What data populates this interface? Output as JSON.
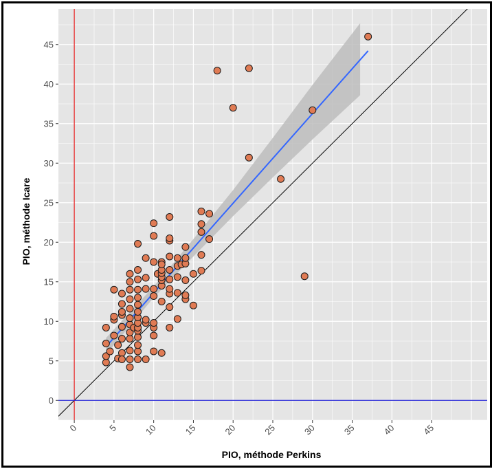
{
  "chart_data": {
    "type": "scatter",
    "title": "",
    "xlabel": "PIO, méthode Perkins",
    "ylabel": "PIO, méthode Icare",
    "xlim": [
      -2,
      52
    ],
    "ylim": [
      -2.5,
      49.5
    ],
    "x_ticks": [
      0,
      5,
      10,
      15,
      20,
      25,
      30,
      35,
      40,
      45
    ],
    "y_ticks": [
      0,
      5,
      10,
      15,
      20,
      25,
      30,
      35,
      40,
      45
    ],
    "grid": true,
    "legend": "none",
    "colors": {
      "panel_background": "#e5e5e5",
      "grid": "#ffffff",
      "points_fill": "#e07b54",
      "points_stroke": "#1a1a1a",
      "regression_line": "#3366ff",
      "confidence_band": "#bdbdbd",
      "identity_line": "#000000",
      "vertical_reference": "#e41a1c",
      "horizontal_reference": "#1f1fd6"
    },
    "reference_lines": {
      "identity": "y = x",
      "vertical_x": 0,
      "horizontal_y": 0
    },
    "regression": {
      "x_start": 4,
      "y_start": 6.8,
      "x_end": 37,
      "y_end": 44.2,
      "band": [
        {
          "x": 4,
          "lo": 5.8,
          "hi": 7.9
        },
        {
          "x": 10,
          "lo": 13.0,
          "hi": 14.4
        },
        {
          "x": 15,
          "lo": 18.2,
          "hi": 20.4
        },
        {
          "x": 20,
          "lo": 23.3,
          "hi": 26.6
        },
        {
          "x": 25,
          "lo": 28.2,
          "hi": 33.2
        },
        {
          "x": 30,
          "lo": 33.0,
          "hi": 39.9
        },
        {
          "x": 36,
          "lo": 38.6,
          "hi": 47.7
        }
      ]
    },
    "points": [
      {
        "x": 4,
        "y": 4.8
      },
      {
        "x": 4,
        "y": 5.6
      },
      {
        "x": 4,
        "y": 7.2
      },
      {
        "x": 4,
        "y": 9.2
      },
      {
        "x": 4.5,
        "y": 6.2
      },
      {
        "x": 5,
        "y": 10.2
      },
      {
        "x": 5,
        "y": 14
      },
      {
        "x": 5,
        "y": 8.2
      },
      {
        "x": 5.5,
        "y": 5.3
      },
      {
        "x": 5.5,
        "y": 7
      },
      {
        "x": 6,
        "y": 6
      },
      {
        "x": 6,
        "y": 7.8
      },
      {
        "x": 6,
        "y": 9.3
      },
      {
        "x": 6,
        "y": 10.8
      },
      {
        "x": 6,
        "y": 11.2
      },
      {
        "x": 6,
        "y": 12.2
      },
      {
        "x": 6,
        "y": 13.5
      },
      {
        "x": 6,
        "y": 5.2
      },
      {
        "x": 5,
        "y": 10.6
      },
      {
        "x": 7,
        "y": 4.2
      },
      {
        "x": 7,
        "y": 5.2
      },
      {
        "x": 7,
        "y": 6.3
      },
      {
        "x": 7,
        "y": 7.8
      },
      {
        "x": 7,
        "y": 8.6
      },
      {
        "x": 7,
        "y": 9.6
      },
      {
        "x": 7,
        "y": 10.4
      },
      {
        "x": 7,
        "y": 11.6
      },
      {
        "x": 7,
        "y": 14
      },
      {
        "x": 7,
        "y": 15
      },
      {
        "x": 7,
        "y": 16
      },
      {
        "x": 7,
        "y": 12.8
      },
      {
        "x": 7.5,
        "y": 9.2
      },
      {
        "x": 8,
        "y": 5.2
      },
      {
        "x": 8,
        "y": 6.2
      },
      {
        "x": 8,
        "y": 7
      },
      {
        "x": 8,
        "y": 8
      },
      {
        "x": 8,
        "y": 8.8
      },
      {
        "x": 8,
        "y": 9.2
      },
      {
        "x": 8,
        "y": 9.8
      },
      {
        "x": 8,
        "y": 10.5
      },
      {
        "x": 8,
        "y": 11.2
      },
      {
        "x": 8,
        "y": 12.1
      },
      {
        "x": 8,
        "y": 13
      },
      {
        "x": 8,
        "y": 14
      },
      {
        "x": 8,
        "y": 15.3
      },
      {
        "x": 8,
        "y": 16.5
      },
      {
        "x": 8,
        "y": 19.8
      },
      {
        "x": 9,
        "y": 5.2
      },
      {
        "x": 9,
        "y": 9.8
      },
      {
        "x": 9,
        "y": 10.2
      },
      {
        "x": 9,
        "y": 14.1
      },
      {
        "x": 9,
        "y": 15.5
      },
      {
        "x": 9,
        "y": 18
      },
      {
        "x": 10,
        "y": 6.2
      },
      {
        "x": 10,
        "y": 8.2
      },
      {
        "x": 10,
        "y": 9.2
      },
      {
        "x": 10,
        "y": 9.8
      },
      {
        "x": 10,
        "y": 13.2
      },
      {
        "x": 10,
        "y": 14.1
      },
      {
        "x": 10,
        "y": 17.5
      },
      {
        "x": 10,
        "y": 20.8
      },
      {
        "x": 10,
        "y": 22.4
      },
      {
        "x": 10.5,
        "y": 16
      },
      {
        "x": 11,
        "y": 6
      },
      {
        "x": 11,
        "y": 12.5
      },
      {
        "x": 11,
        "y": 14.5
      },
      {
        "x": 11,
        "y": 15.2
      },
      {
        "x": 11,
        "y": 15.6
      },
      {
        "x": 11,
        "y": 16.1
      },
      {
        "x": 11,
        "y": 16.5
      },
      {
        "x": 11,
        "y": 17.5
      },
      {
        "x": 11,
        "y": 17.2
      },
      {
        "x": 12,
        "y": 9.2
      },
      {
        "x": 12,
        "y": 11.8
      },
      {
        "x": 12,
        "y": 13.5
      },
      {
        "x": 12,
        "y": 14.1
      },
      {
        "x": 12,
        "y": 15.3
      },
      {
        "x": 12,
        "y": 16.5
      },
      {
        "x": 12,
        "y": 18.2
      },
      {
        "x": 12,
        "y": 20.2
      },
      {
        "x": 12,
        "y": 20.5
      },
      {
        "x": 12,
        "y": 23.2
      },
      {
        "x": 13,
        "y": 10.3
      },
      {
        "x": 13,
        "y": 13.6
      },
      {
        "x": 13,
        "y": 15.6
      },
      {
        "x": 13,
        "y": 17
      },
      {
        "x": 13,
        "y": 18
      },
      {
        "x": 13.5,
        "y": 17.2
      },
      {
        "x": 14,
        "y": 12.8
      },
      {
        "x": 14,
        "y": 13.3
      },
      {
        "x": 14,
        "y": 15.2
      },
      {
        "x": 14,
        "y": 17.3
      },
      {
        "x": 14,
        "y": 18
      },
      {
        "x": 14,
        "y": 19.4
      },
      {
        "x": 15,
        "y": 12
      },
      {
        "x": 15,
        "y": 16
      },
      {
        "x": 16,
        "y": 16.4
      },
      {
        "x": 16,
        "y": 18.4
      },
      {
        "x": 16,
        "y": 21.3
      },
      {
        "x": 16,
        "y": 22.3
      },
      {
        "x": 16,
        "y": 23.9
      },
      {
        "x": 17,
        "y": 20.4
      },
      {
        "x": 17,
        "y": 23.6
      },
      {
        "x": 18,
        "y": 41.7
      },
      {
        "x": 20,
        "y": 37
      },
      {
        "x": 22,
        "y": 42
      },
      {
        "x": 22,
        "y": 30.7
      },
      {
        "x": 26,
        "y": 28
      },
      {
        "x": 29,
        "y": 15.7
      },
      {
        "x": 30,
        "y": 36.7
      },
      {
        "x": 37,
        "y": 46
      }
    ]
  }
}
